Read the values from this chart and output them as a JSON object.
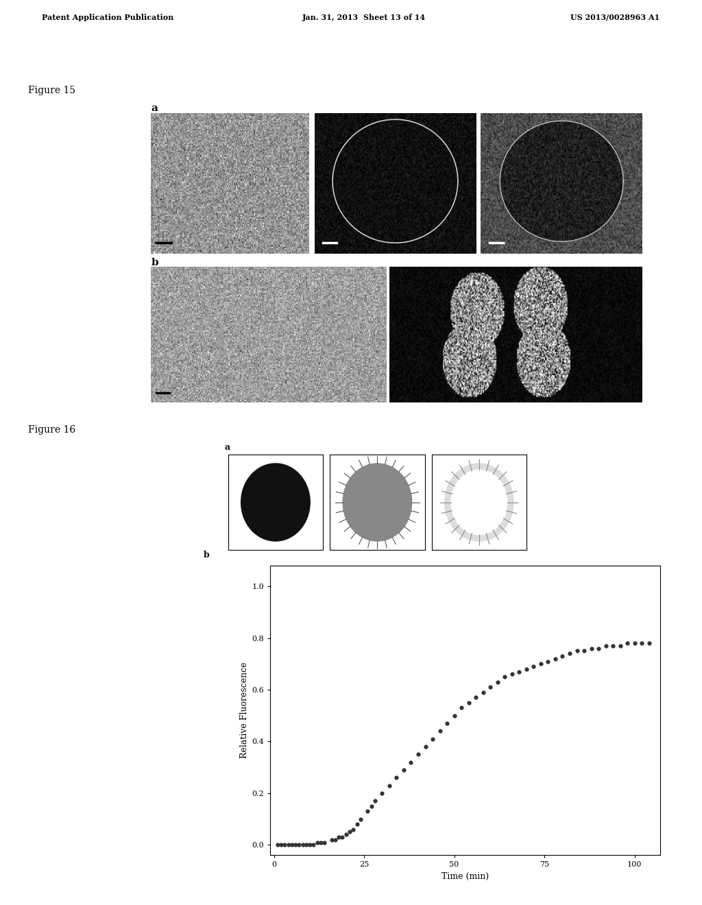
{
  "header_left": "Patent Application Publication",
  "header_mid": "Jan. 31, 2013  Sheet 13 of 14",
  "header_right": "US 2013/0028963 A1",
  "fig15_label": "Figure 15",
  "fig16_label": "Figure 16",
  "plot_xlabel": "Time (min)",
  "plot_ylabel": "Relative Fluorescence",
  "plot_xticks": [
    0,
    25,
    50,
    75,
    100
  ],
  "plot_yticks": [
    0.0,
    0.2,
    0.4,
    0.6,
    0.8,
    1.0
  ],
  "scatter_x": [
    1,
    2,
    3,
    4,
    5,
    6,
    7,
    8,
    9,
    10,
    11,
    12,
    13,
    14,
    16,
    17,
    18,
    19,
    20,
    21,
    22,
    23,
    24,
    26,
    27,
    28,
    30,
    32,
    34,
    36,
    38,
    40,
    42,
    44,
    46,
    48,
    50,
    52,
    54,
    56,
    58,
    60,
    62,
    64,
    66,
    68,
    70,
    72,
    74,
    76,
    78,
    80,
    82,
    84,
    86,
    88,
    90,
    92,
    94,
    96,
    98,
    100,
    102,
    104
  ],
  "scatter_y": [
    0.0,
    0.0,
    0.0,
    0.0,
    0.0,
    0.0,
    0.0,
    0.0,
    0.0,
    0.0,
    0.0,
    0.01,
    0.01,
    0.01,
    0.02,
    0.02,
    0.03,
    0.03,
    0.04,
    0.05,
    0.06,
    0.08,
    0.1,
    0.13,
    0.15,
    0.17,
    0.2,
    0.23,
    0.26,
    0.29,
    0.32,
    0.35,
    0.38,
    0.41,
    0.44,
    0.47,
    0.5,
    0.53,
    0.55,
    0.57,
    0.59,
    0.61,
    0.63,
    0.65,
    0.66,
    0.67,
    0.68,
    0.69,
    0.7,
    0.71,
    0.72,
    0.73,
    0.74,
    0.75,
    0.75,
    0.76,
    0.76,
    0.77,
    0.77,
    0.77,
    0.78,
    0.78,
    0.78,
    0.78
  ],
  "bg_color": "#ffffff",
  "text_color": "#000000"
}
